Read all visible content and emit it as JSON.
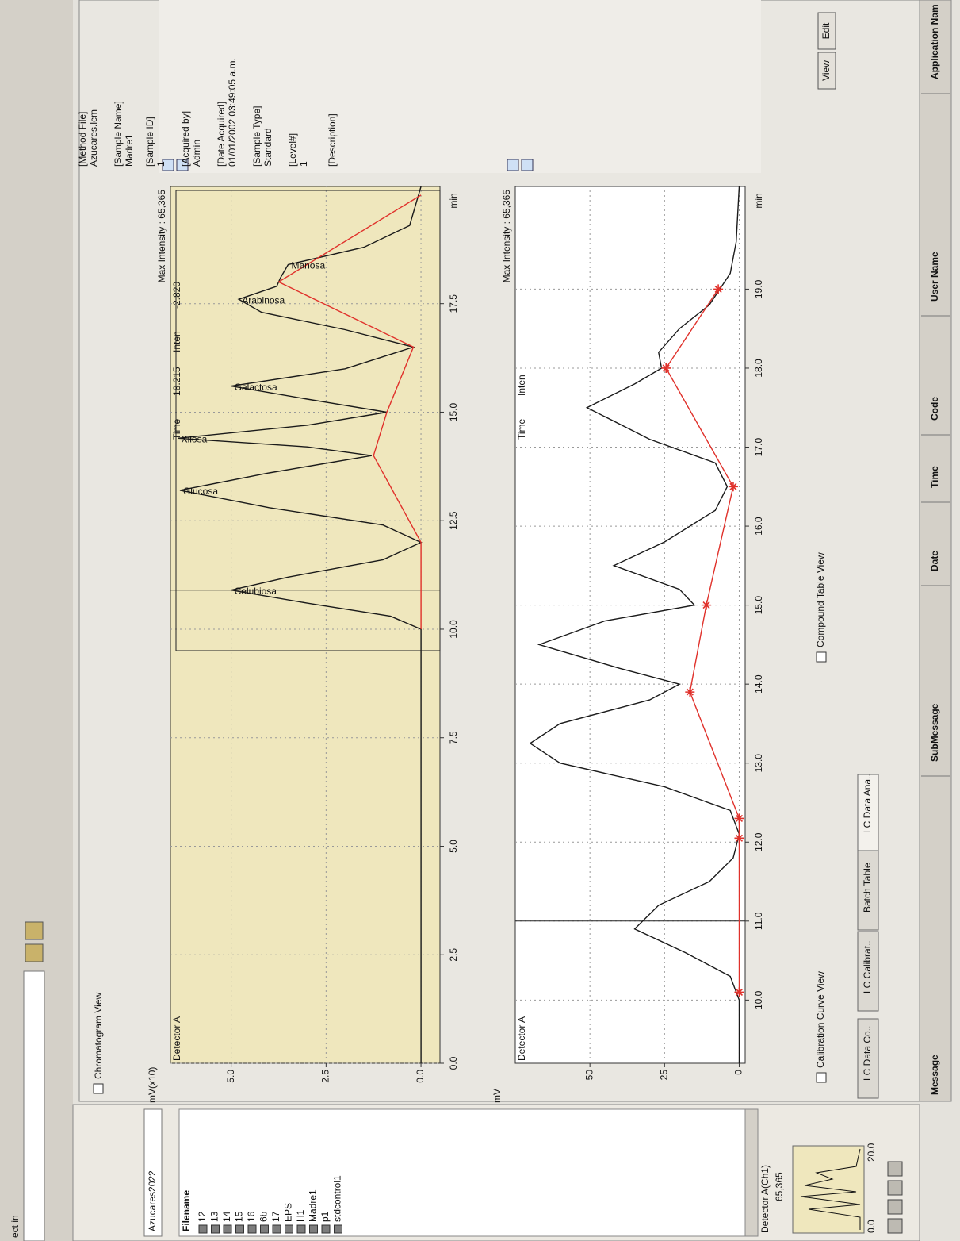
{
  "toolbar": {
    "search_label": "ect in"
  },
  "left_panel": {
    "project": "Azucares2022",
    "list_header": "Filename",
    "files": [
      "12",
      "13",
      "14",
      "15",
      "16",
      "6b",
      "17",
      "EPS",
      "H1",
      "Madre1",
      "p1",
      "stdcontrol1"
    ],
    "detector": "Detector A(Ch1)",
    "detector_max": "65,365",
    "thumb_labels": [
      "0.0",
      "20.0"
    ]
  },
  "window_title": "Chromatogram View",
  "chart_data": [
    {
      "type": "line",
      "y_label": "mV(x10)",
      "detector": "Detector A",
      "x_unit": "min",
      "max_intensity": "Max Intensity : 65,365",
      "readout": [
        "Time",
        "18.215",
        "Inten",
        "-2.820"
      ],
      "background": "#efe7bd",
      "grid": true,
      "cursor_x": 10.9,
      "xlim": [
        0,
        20.2
      ],
      "xticks": [
        {
          "value": 0,
          "label": "0.0"
        },
        {
          "value": 2.5,
          "label": "2.5"
        },
        {
          "value": 5,
          "label": "5.0"
        },
        {
          "value": 7.5,
          "label": "7.5"
        },
        {
          "value": 10,
          "label": "10.0"
        },
        {
          "value": 12.5,
          "label": "12.5"
        },
        {
          "value": 15,
          "label": "15.0"
        },
        {
          "value": 17.5,
          "label": "17.5"
        }
      ],
      "ylim": [
        -0.5,
        6.6
      ],
      "yticks": [
        {
          "value": 0,
          "label": "0.0"
        },
        {
          "value": 2.5,
          "label": "2.5"
        },
        {
          "value": 5,
          "label": "5.0"
        }
      ],
      "series": [
        {
          "color": "#1a1a1a",
          "markers": false,
          "x": [
            0,
            10.0,
            10.3,
            10.6,
            10.9,
            11.2,
            11.6,
            12.0,
            12.4,
            12.8,
            13.2,
            13.6,
            14.0,
            14.2,
            14.4,
            14.7,
            15.0,
            15.3,
            15.6,
            16.0,
            16.5,
            16.9,
            17.3,
            17.6,
            17.9,
            18.1,
            18.4,
            18.8,
            19.3,
            20.2
          ],
          "values": [
            0,
            0,
            0.8,
            3,
            5.0,
            3.5,
            1,
            0,
            1,
            4,
            6.35,
            4,
            1.3,
            3,
            6.4,
            3,
            0.9,
            3,
            5.0,
            2,
            0.2,
            2,
            4.2,
            4.8,
            3.8,
            3.7,
            3.5,
            1.5,
            0.3,
            0
          ]
        },
        {
          "color": "#e0312b",
          "markers": false,
          "x": [
            10.0,
            12.0,
            14.0,
            15.0,
            16.5,
            18.0,
            20.0
          ],
          "values": [
            0,
            0,
            1.25,
            0.9,
            0.2,
            3.75,
            0
          ]
        }
      ],
      "peak_labels": [
        {
          "text": "Celubiosa",
          "x": 10.9,
          "y": 5.0
        },
        {
          "text": "Glucosa",
          "x": 13.2,
          "y": 6.35
        },
        {
          "text": "Xilosa",
          "x": 14.4,
          "y": 6.4
        },
        {
          "text": "Galactosa",
          "x": 15.6,
          "y": 5.0
        },
        {
          "text": "Arabinosa",
          "x": 17.6,
          "y": 4.8
        },
        {
          "text": "Manosa",
          "x": 18.4,
          "y": 3.5
        }
      ]
    },
    {
      "type": "line",
      "y_label": "mV",
      "detector": "Detector A",
      "x_unit": "min",
      "max_intensity": "Max Intensity : 65,365",
      "readout": [
        "Time",
        "Inten"
      ],
      "background": "#ffffff",
      "grid": true,
      "cursor_x": 11.0,
      "xlim": [
        9.2,
        20.3
      ],
      "xticks": [
        {
          "value": 10,
          "label": "10.0"
        },
        {
          "value": 11,
          "label": "11.0"
        },
        {
          "value": 12,
          "label": "12.0"
        },
        {
          "value": 13,
          "label": "13.0"
        },
        {
          "value": 14,
          "label": "14.0"
        },
        {
          "value": 15,
          "label": "15.0"
        },
        {
          "value": 16,
          "label": "16.0"
        },
        {
          "value": 17,
          "label": "17.0"
        },
        {
          "value": 18,
          "label": "18.0"
        },
        {
          "value": 19,
          "label": "19.0"
        }
      ],
      "ylim": [
        -2,
        75
      ],
      "yticks": [
        0,
        25,
        50
      ],
      "series": [
        {
          "color": "#1a1a1a",
          "markers": false,
          "x": [
            9.2,
            10.0,
            10.3,
            10.6,
            10.9,
            11.2,
            11.5,
            11.8,
            12.1,
            12.4,
            12.7,
            13.0,
            13.25,
            13.5,
            13.8,
            14.0,
            14.2,
            14.5,
            14.8,
            15.0,
            15.2,
            15.5,
            15.8,
            16.2,
            16.5,
            16.8,
            17.1,
            17.5,
            17.8,
            18.0,
            18.2,
            18.5,
            18.8,
            19.2,
            19.6,
            20.3
          ],
          "values": [
            0,
            0,
            3,
            18,
            35,
            27,
            10,
            2,
            0,
            3,
            25,
            60,
            70,
            60,
            30,
            20,
            40,
            67,
            45,
            15,
            20,
            42,
            25,
            8,
            4,
            8,
            30,
            51,
            35,
            26,
            27,
            20,
            10,
            3,
            1,
            0
          ]
        },
        {
          "color": "#e0312b",
          "markers": true,
          "x": [
            10.1,
            12.05,
            12.3,
            13.9,
            15.0,
            16.5,
            18.0,
            19.0
          ],
          "values": [
            0,
            0,
            0,
            16.5,
            11,
            2,
            24.5,
            7
          ]
        }
      ]
    }
  ],
  "info": [
    {
      "label": "[Method File]",
      "value": "Azucares.lcm"
    },
    {
      "label": "[Sample Name]",
      "value": "Madre1"
    },
    {
      "label": "[Sample ID]",
      "value": "1"
    },
    {
      "label": "[Acquired by]",
      "value": "Admin"
    },
    {
      "label": "[Date Acquired]",
      "value": "01/01/2002 03:49:05 a.m."
    },
    {
      "label": "[Sample Type]",
      "value": "Standard"
    },
    {
      "label": "[Level#]",
      "value": "1"
    },
    {
      "label": "[Description]"
    }
  ],
  "buttons": [
    "View",
    "Edit"
  ],
  "checkboxes": [
    "Calibration Curve View",
    "Compound Table View"
  ],
  "tabs": [
    "LC Data Co..",
    "LC Calibrat..",
    "Batch Table",
    "LC Data Ana.."
  ],
  "message_columns": [
    "Message",
    "SubMessage",
    "Date",
    "Time",
    "Code",
    "User Name",
    "Application Nam"
  ]
}
